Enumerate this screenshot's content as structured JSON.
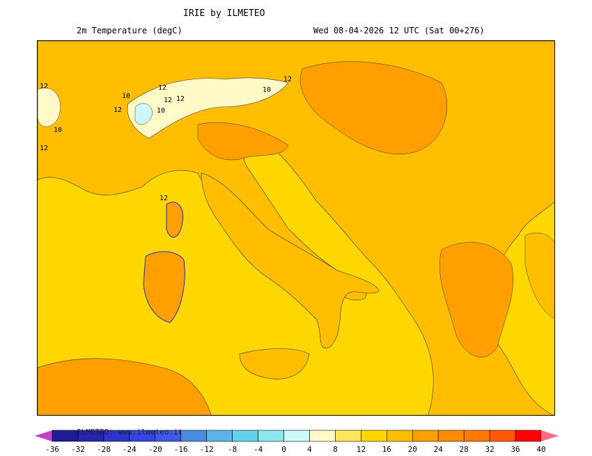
{
  "header": {
    "title": "IRIE by ILMETEO",
    "field": "2m Temperature (degC)",
    "valid_time": "Wed 08-04-2026 12 UTC (Sat 00+276)"
  },
  "map": {
    "sea_color": "#ffd700",
    "land_warm_color": "#ffbe00",
    "land_hot_color": "#ffa000",
    "mountain_cold_color": "#fffac8",
    "contour_labels": [
      "12",
      "12",
      "10",
      "12",
      "10",
      "12",
      "10",
      "12",
      "12",
      "10",
      "12",
      "12"
    ]
  },
  "legend": {
    "ticks": [
      "-36",
      "-32",
      "-28",
      "-24",
      "-20",
      "-16",
      "-12",
      "-8",
      "-4",
      "0",
      "4",
      "8",
      "12",
      "16",
      "20",
      "24",
      "28",
      "32",
      "36",
      "40"
    ],
    "colors": [
      "#1c1c96",
      "#2424b0",
      "#2c34cc",
      "#3444e0",
      "#3c5ae4",
      "#4c8ce0",
      "#5cb4e8",
      "#64d2ea",
      "#8ce8e8",
      "#ccf8f8",
      "#fffac8",
      "#ffe65a",
      "#ffd700",
      "#ffbe00",
      "#ffa000",
      "#ff8c00",
      "#ff7800",
      "#ff5a00",
      "#ff0000"
    ],
    "under_color": "#c040c8",
    "over_color": "#ff6a8a",
    "watermark": "ILMETEO: www.ilmeteo.it"
  }
}
